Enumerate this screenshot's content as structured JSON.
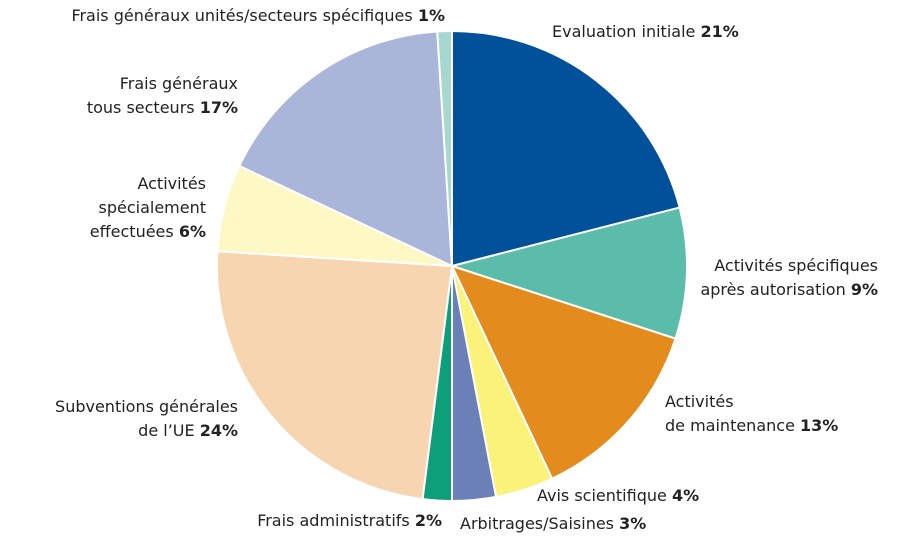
{
  "chart_data": {
    "type": "pie",
    "categories": [
      "Evaluation initiale",
      "Activités spécifiques après autorisation",
      "Activités de maintenance",
      "Avis scientifique",
      "Arbitrages/Saisines",
      "Frais administratifs",
      "Subventions générales de l’UE",
      "Activités spécialement effectuées",
      "Frais généraux tous secteurs",
      "Frais généraux unités/secteurs spécifiques"
    ],
    "values": [
      21,
      9,
      13,
      4,
      3,
      2,
      24,
      6,
      17,
      1
    ],
    "value_labels": [
      "21%",
      "9%",
      "13%",
      "4%",
      "3%",
      "2%",
      "24%",
      "6%",
      "17%",
      "1%"
    ],
    "colors": [
      "#00519a",
      "#5bbcaa",
      "#e38b1c",
      "#fbf27a",
      "#6b80b7",
      "#0d9e7a",
      "#f6d5b0",
      "#fef9c4",
      "#a9b5d9",
      "#a7d8d0"
    ]
  }
}
